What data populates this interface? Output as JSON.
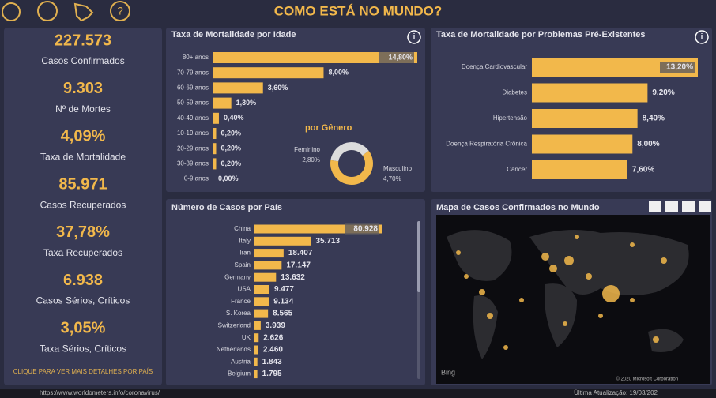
{
  "header": {
    "title": "COMO ESTÁ NO MUNDO?"
  },
  "kpis": [
    {
      "value": "227.573",
      "label": "Casos Confirmados"
    },
    {
      "value": "9.303",
      "label": "Nº de Mortes"
    },
    {
      "value": "4,09%",
      "label": "Taxa de Mortalidade"
    },
    {
      "value": "85.971",
      "label": "Casos Recuperados"
    },
    {
      "value": "37,78%",
      "label": "Taxa Recuperados"
    },
    {
      "value": "6.938",
      "label": "Casos Sérios, Críticos"
    },
    {
      "value": "3,05%",
      "label": "Taxa Sérios, Críticos"
    }
  ],
  "chart_data": [
    {
      "type": "hbar",
      "title": "Taxa de Mortalidade por Idade",
      "color": "#f2b84b",
      "categories": [
        "80+ anos",
        "70-79 anos",
        "60-69 anos",
        "50-59 anos",
        "40-49 anos",
        "10-19 anos",
        "20-29 anos",
        "30-39 anos",
        "0-9 anos"
      ],
      "values": [
        14.8,
        8.0,
        3.6,
        1.3,
        0.4,
        0.2,
        0.2,
        0.2,
        0.0
      ],
      "value_labels": [
        "14,80%",
        "8,00%",
        "3,60%",
        "1,30%",
        "0,40%",
        "0,20%",
        "0,20%",
        "0,20%",
        "0,00%"
      ]
    },
    {
      "type": "pie",
      "title": "por Gênero",
      "categories": [
        "Feminino",
        "Masculino"
      ],
      "values": [
        2.8,
        4.7
      ],
      "value_labels": [
        "2,80%",
        "4,70%"
      ],
      "colors": [
        "#dcdcdc",
        "#f2b84b"
      ]
    },
    {
      "type": "hbar",
      "title": "Taxa de Mortalidade por Problemas Pré-Existentes",
      "color": "#f2b84b",
      "categories": [
        "Doença Cardiovascular",
        "Diabetes",
        "Hipertensão",
        "Doença Respiratória Crônica",
        "Câncer"
      ],
      "values": [
        13.2,
        9.2,
        8.4,
        8.0,
        7.6
      ],
      "value_labels": [
        "13,20%",
        "9,20%",
        "8,40%",
        "8,00%",
        "7,60%"
      ]
    },
    {
      "type": "hbar",
      "title": "Número de Casos por País",
      "color": "#f2b84b",
      "categories": [
        "China",
        "Italy",
        "Iran",
        "Spain",
        "Germany",
        "USA",
        "France",
        "S. Korea",
        "Switzerland",
        "UK",
        "Netherlands",
        "Austria",
        "Belgium"
      ],
      "values": [
        80928,
        35713,
        18407,
        17147,
        13632,
        9477,
        9134,
        8565,
        3939,
        2626,
        2460,
        1843,
        1795
      ],
      "value_labels": [
        "80.928",
        "35.713",
        "18.407",
        "17.147",
        "13.632",
        "9.477",
        "9.134",
        "8.565",
        "3.939",
        "2.626",
        "2.460",
        "1.843",
        "1.795"
      ]
    }
  ],
  "map": {
    "title": "Mapa de Casos Confirmados no Mundo",
    "logo": "Bing",
    "credit": "© 2020 Microsoft Corporation"
  },
  "footer": {
    "hint": "CLIQUE PARA VER MAIS DETALHES POR PAÍS",
    "source": "https://www.worldometers.info/coronavirus/",
    "updated": "Última Atualização: 19/03/202"
  }
}
